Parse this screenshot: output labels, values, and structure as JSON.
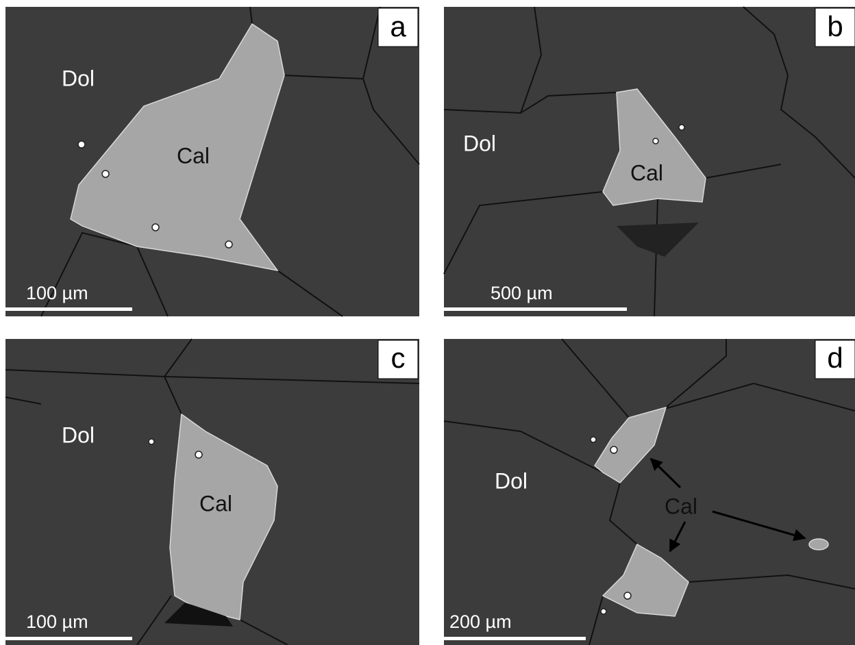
{
  "panels": [
    {
      "letter": "a",
      "labels": [
        "Dol",
        "Cal"
      ],
      "scale_bar": "100 µm"
    },
    {
      "letter": "b",
      "labels": [
        "Dol",
        "Cal"
      ],
      "scale_bar": "500 µm"
    },
    {
      "letter": "c",
      "labels": [
        "Dol",
        "Cal"
      ],
      "scale_bar": "100 µm"
    },
    {
      "letter": "d",
      "labels": [
        "Dol",
        "Cal"
      ],
      "scale_bar": "200 µm"
    }
  ]
}
